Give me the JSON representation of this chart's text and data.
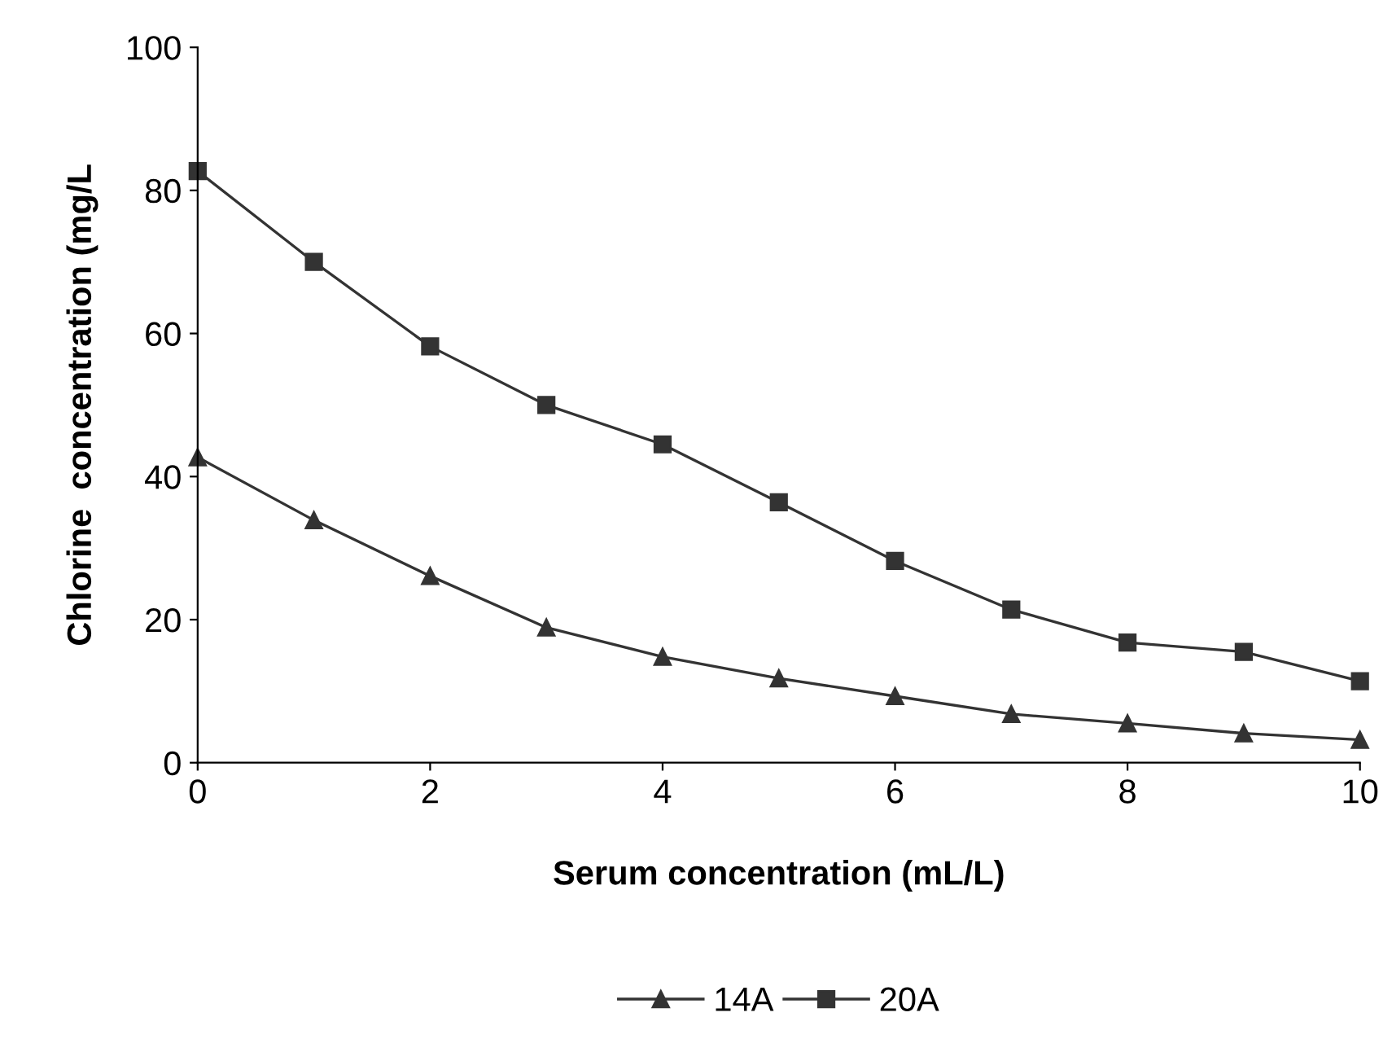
{
  "chart_data": {
    "type": "line",
    "xlabel": "Serum concentration (mL/L)",
    "ylabel": "Chlorine  concentration (mg/L",
    "x": [
      0,
      1,
      2,
      3,
      4,
      5,
      6,
      7,
      8,
      9,
      10
    ],
    "series": [
      {
        "name": "14A",
        "color": "#333333",
        "marker": "triangle",
        "values": [
          42.7,
          33.9,
          26.1,
          18.9,
          14.8,
          11.8,
          9.3,
          6.8,
          5.5,
          4.1,
          3.2
        ]
      },
      {
        "name": "20A",
        "color": "#333333",
        "marker": "square",
        "values": [
          82.7,
          70,
          58.2,
          50,
          44.5,
          36.4,
          28.2,
          21.4,
          16.8,
          15.5,
          11.4
        ]
      }
    ],
    "xlim": [
      0,
      10
    ],
    "xticks": [
      0,
      2,
      4,
      6,
      8,
      10
    ],
    "ylim": [
      0,
      100
    ],
    "yticks": [
      0,
      20,
      40,
      60,
      80,
      100
    ],
    "grid": false,
    "legend": "bottom",
    "line_style": "solid"
  }
}
